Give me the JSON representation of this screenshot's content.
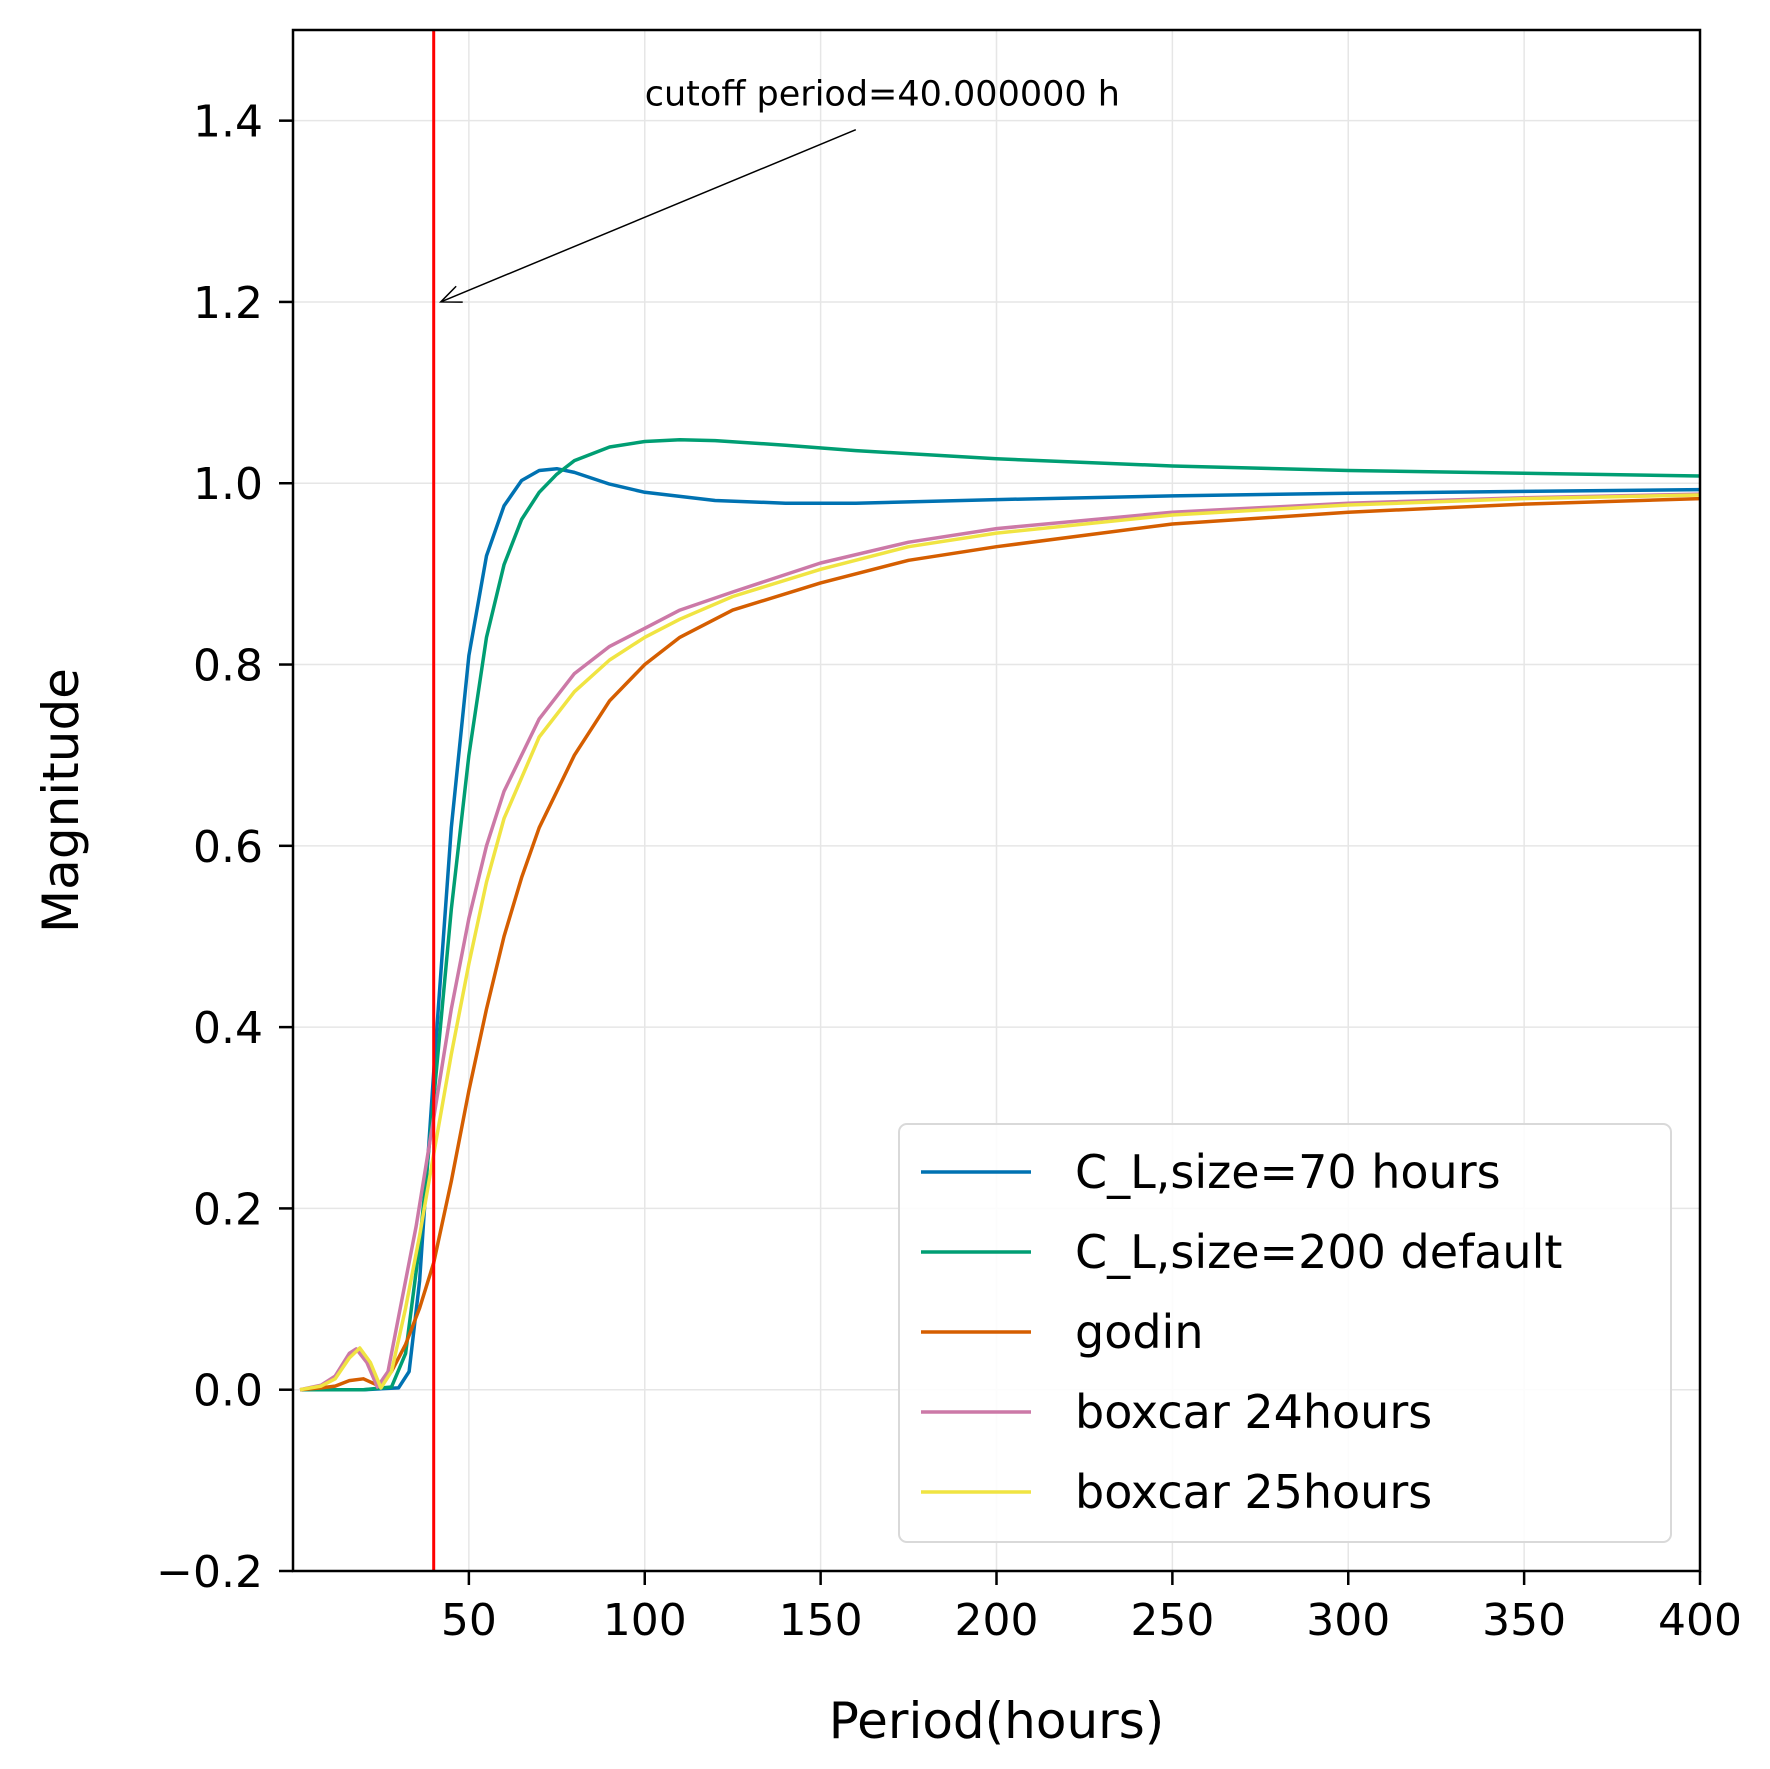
{
  "chart_data": {
    "type": "line",
    "xlabel": "Period(hours)",
    "ylabel": "Magnitude",
    "xlim": [
      0,
      400
    ],
    "ylim": [
      -0.2,
      1.5
    ],
    "xticks": [
      50,
      100,
      150,
      200,
      250,
      300,
      350,
      400
    ],
    "yticks": [
      -0.2,
      0.0,
      0.2,
      0.4,
      0.6,
      0.8,
      1.0,
      1.2,
      1.4
    ],
    "ytick_labels": [
      "−0.2",
      "0.0",
      "0.2",
      "0.4",
      "0.6",
      "0.8",
      "1.0",
      "1.2",
      "1.4"
    ],
    "grid": true,
    "legend_position": "lower-right",
    "cutoff_line": {
      "x": 40,
      "color": "#ff0000"
    },
    "annotation": {
      "text": "cutoff period=40.000000 h",
      "text_x": 100,
      "text_y": 1.43,
      "arrow_from": [
        160,
        1.39
      ],
      "arrow_to": [
        42,
        1.2
      ]
    },
    "series": [
      {
        "name": "C_L,size=70 hours",
        "color": "#0072b2",
        "points": [
          [
            2,
            0
          ],
          [
            20,
            0
          ],
          [
            30,
            0.002
          ],
          [
            33,
            0.02
          ],
          [
            36,
            0.12
          ],
          [
            40,
            0.35
          ],
          [
            45,
            0.62
          ],
          [
            50,
            0.81
          ],
          [
            55,
            0.92
          ],
          [
            60,
            0.975
          ],
          [
            65,
            1.003
          ],
          [
            70,
            1.014
          ],
          [
            75,
            1.016
          ],
          [
            80,
            1.012
          ],
          [
            90,
            0.999
          ],
          [
            100,
            0.99
          ],
          [
            120,
            0.981
          ],
          [
            140,
            0.978
          ],
          [
            160,
            0.978
          ],
          [
            200,
            0.982
          ],
          [
            250,
            0.986
          ],
          [
            300,
            0.989
          ],
          [
            350,
            0.991
          ],
          [
            400,
            0.993
          ]
        ]
      },
      {
        "name": "C_L,size=200 default",
        "color": "#009e73",
        "points": [
          [
            2,
            0
          ],
          [
            20,
            0
          ],
          [
            28,
            0.003
          ],
          [
            32,
            0.04
          ],
          [
            36,
            0.16
          ],
          [
            40,
            0.32
          ],
          [
            45,
            0.53
          ],
          [
            50,
            0.7
          ],
          [
            55,
            0.83
          ],
          [
            60,
            0.91
          ],
          [
            65,
            0.96
          ],
          [
            70,
            0.99
          ],
          [
            75,
            1.01
          ],
          [
            80,
            1.025
          ],
          [
            90,
            1.04
          ],
          [
            100,
            1.046
          ],
          [
            110,
            1.048
          ],
          [
            120,
            1.047
          ],
          [
            140,
            1.042
          ],
          [
            160,
            1.036
          ],
          [
            200,
            1.027
          ],
          [
            250,
            1.019
          ],
          [
            300,
            1.014
          ],
          [
            350,
            1.011
          ],
          [
            400,
            1.008
          ]
        ]
      },
      {
        "name": "godin",
        "color": "#d55e00",
        "points": [
          [
            2,
            0
          ],
          [
            8,
            0.002
          ],
          [
            12,
            0.004
          ],
          [
            16,
            0.01
          ],
          [
            20,
            0.012
          ],
          [
            24,
            0.005
          ],
          [
            28,
            0.02
          ],
          [
            32,
            0.05
          ],
          [
            36,
            0.09
          ],
          [
            40,
            0.14
          ],
          [
            45,
            0.23
          ],
          [
            50,
            0.33
          ],
          [
            55,
            0.42
          ],
          [
            60,
            0.5
          ],
          [
            65,
            0.565
          ],
          [
            70,
            0.62
          ],
          [
            80,
            0.7
          ],
          [
            90,
            0.76
          ],
          [
            100,
            0.8
          ],
          [
            110,
            0.83
          ],
          [
            125,
            0.86
          ],
          [
            150,
            0.89
          ],
          [
            175,
            0.915
          ],
          [
            200,
            0.93
          ],
          [
            250,
            0.955
          ],
          [
            300,
            0.968
          ],
          [
            350,
            0.977
          ],
          [
            400,
            0.983
          ]
        ]
      },
      {
        "name": "boxcar 24hours",
        "color": "#cc79a7",
        "points": [
          [
            2,
            0
          ],
          [
            8,
            0.005
          ],
          [
            12,
            0.015
          ],
          [
            16,
            0.04
          ],
          [
            18,
            0.045
          ],
          [
            21,
            0.03
          ],
          [
            24,
            0.003
          ],
          [
            27,
            0.02
          ],
          [
            30,
            0.08
          ],
          [
            35,
            0.18
          ],
          [
            40,
            0.3
          ],
          [
            45,
            0.42
          ],
          [
            50,
            0.52
          ],
          [
            55,
            0.6
          ],
          [
            60,
            0.66
          ],
          [
            70,
            0.74
          ],
          [
            80,
            0.79
          ],
          [
            90,
            0.82
          ],
          [
            100,
            0.84
          ],
          [
            110,
            0.86
          ],
          [
            125,
            0.88
          ],
          [
            150,
            0.912
          ],
          [
            175,
            0.935
          ],
          [
            200,
            0.95
          ],
          [
            250,
            0.968
          ],
          [
            300,
            0.978
          ],
          [
            350,
            0.984
          ],
          [
            400,
            0.988
          ]
        ]
      },
      {
        "name": "boxcar 25hours",
        "color": "#f0e442",
        "points": [
          [
            2,
            0
          ],
          [
            8,
            0.004
          ],
          [
            12,
            0.012
          ],
          [
            16,
            0.035
          ],
          [
            19,
            0.046
          ],
          [
            22,
            0.03
          ],
          [
            25,
            0.002
          ],
          [
            28,
            0.02
          ],
          [
            32,
            0.09
          ],
          [
            36,
            0.17
          ],
          [
            40,
            0.26
          ],
          [
            45,
            0.37
          ],
          [
            50,
            0.47
          ],
          [
            55,
            0.56
          ],
          [
            60,
            0.63
          ],
          [
            70,
            0.72
          ],
          [
            80,
            0.77
          ],
          [
            90,
            0.805
          ],
          [
            100,
            0.83
          ],
          [
            110,
            0.85
          ],
          [
            125,
            0.875
          ],
          [
            150,
            0.905
          ],
          [
            175,
            0.93
          ],
          [
            200,
            0.945
          ],
          [
            250,
            0.965
          ],
          [
            300,
            0.976
          ],
          [
            350,
            0.983
          ],
          [
            400,
            0.987
          ]
        ]
      }
    ]
  }
}
